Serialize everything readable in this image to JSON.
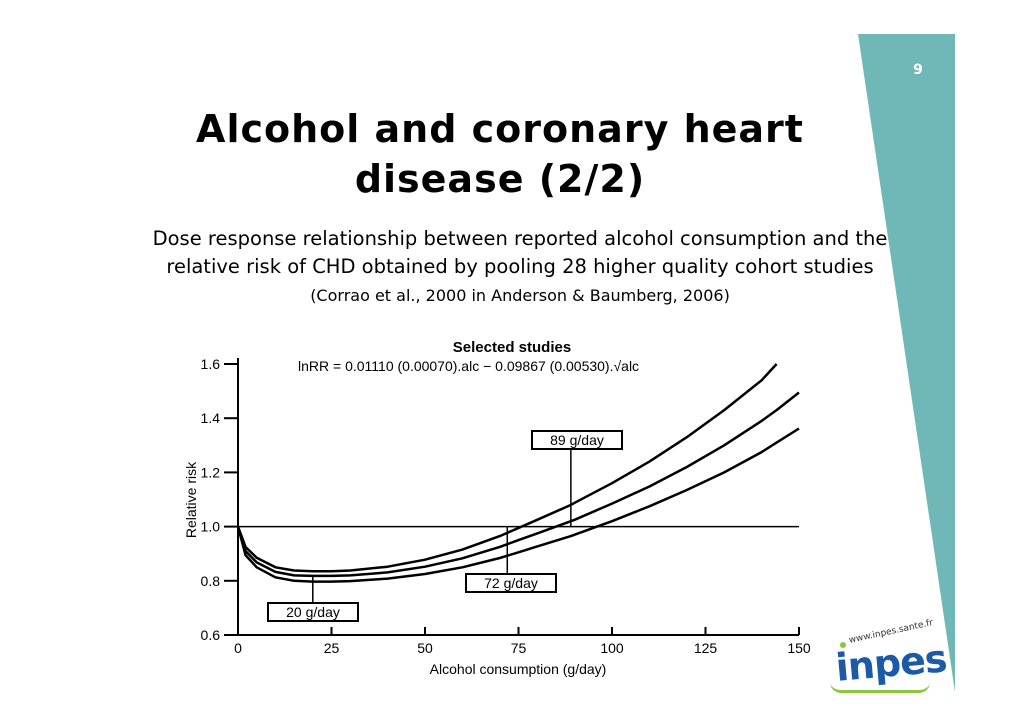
{
  "slide": {
    "page_number": "9",
    "title_line1": "Alcohol and coronary heart",
    "title_line2": "disease (2/2)",
    "subtitle_main": "Dose response relationship between reported alcohol consumption and the relative risk of CHD obtained by pooling 28 higher quality cohort studies",
    "subtitle_cite": "(Corrao et al., 2000 in Anderson & Baumberg, 2006)",
    "accent_color": "#70b8b7"
  },
  "logo": {
    "url_text": "www.inpes.sante.fr",
    "word": "inpes",
    "brand_color": "#1c5aa6",
    "secondary_color": "#8cc63f"
  },
  "chart_data": {
    "type": "line",
    "title": "Selected studies",
    "equation": "lnRR = 0.01110 (0.00070).alc − 0.09867 (0.00530).√alc",
    "xlabel": "Alcohol consumption (g/day)",
    "ylabel": "Relative risk",
    "xlim": [
      0,
      150
    ],
    "ylim": [
      0.6,
      1.6
    ],
    "x_ticks": [
      "0",
      "25",
      "50",
      "75",
      "100",
      "125",
      "150"
    ],
    "y_ticks": [
      "0.6",
      "0.8",
      "1.0",
      "1.2",
      "1.4",
      "1.6"
    ],
    "reference_line_y": 1.0,
    "x": [
      0,
      2,
      5,
      10,
      15,
      20,
      25,
      30,
      40,
      50,
      60,
      70,
      75,
      80,
      89,
      90,
      100,
      110,
      120,
      130,
      140,
      144,
      150
    ],
    "series": [
      {
        "values": [
          1.0,
          0.925,
          0.885,
          0.85,
          0.838,
          0.835,
          0.835,
          0.838,
          0.852,
          0.878,
          0.915,
          0.965,
          0.995,
          1.025,
          1.08,
          1.088,
          1.16,
          1.24,
          1.33,
          1.43,
          1.54,
          1.6,
          null
        ]
      },
      {
        "values": [
          1.0,
          0.91,
          0.868,
          0.833,
          0.82,
          0.818,
          0.818,
          0.82,
          0.831,
          0.852,
          0.883,
          0.925,
          0.95,
          0.975,
          1.02,
          1.025,
          1.085,
          1.148,
          1.22,
          1.3,
          1.39,
          1.43,
          1.495
        ]
      },
      {
        "values": [
          1.0,
          0.895,
          0.85,
          0.813,
          0.8,
          0.797,
          0.797,
          0.799,
          0.808,
          0.825,
          0.85,
          0.884,
          0.905,
          0.927,
          0.965,
          0.97,
          1.02,
          1.075,
          1.135,
          1.2,
          1.275,
          1.31,
          1.362
        ]
      }
    ],
    "annotations": [
      {
        "text": "20 g/day",
        "x": 20,
        "y": 0.82
      },
      {
        "text": "72 g/day",
        "x": 72,
        "y": 1.0
      },
      {
        "text": "89 g/day",
        "x": 89,
        "y": 1.0
      }
    ]
  }
}
